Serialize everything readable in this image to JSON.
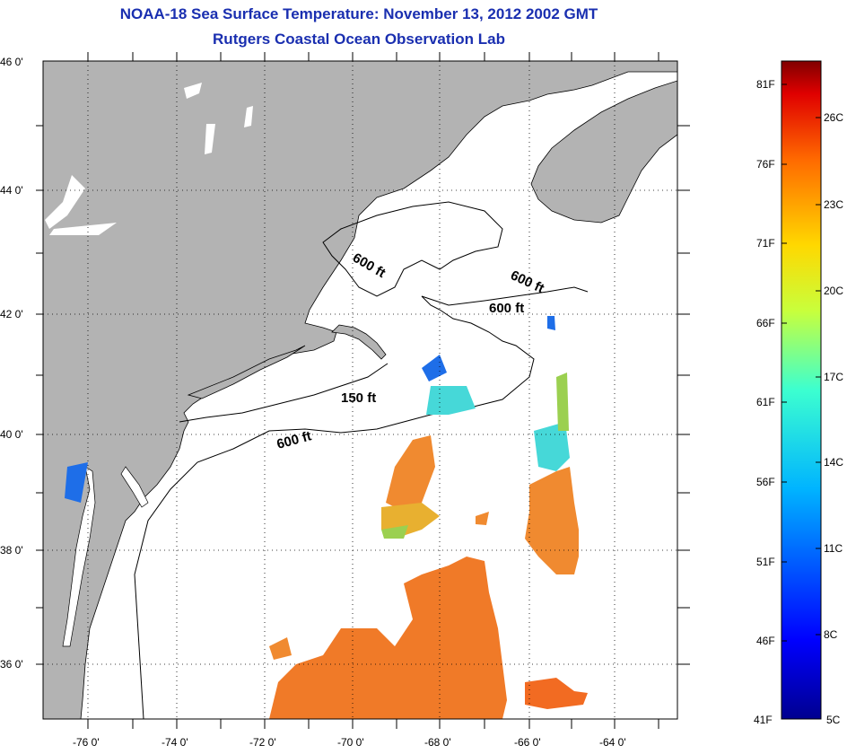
{
  "title": {
    "line1": "NOAA-18 Sea Surface Temperature:  November 13, 2012 2002 GMT",
    "line2": "Rutgers Coastal Ocean Observation Lab"
  },
  "map": {
    "lat_labels": [
      "46 0'",
      "44 0'",
      "42 0'",
      "40 0'",
      "38 0'",
      "36 0'"
    ],
    "lon_labels": [
      "-76 0'",
      "-74 0'",
      "-72 0'",
      "-70 0'",
      "-68 0'",
      "-66 0'",
      "-64 0'"
    ],
    "contours": [
      "600 ft",
      "600 ft",
      "600 ft",
      "150 ft",
      "600 ft"
    ],
    "colors": {
      "land": "#b3b3b3",
      "coastline": "#000000",
      "sst_warm": "#f07a28",
      "sst_mid": "#e8b030",
      "sst_cool": "#46d8d8"
    }
  },
  "colorbar": {
    "fahrenheit": [
      "81F",
      "76F",
      "71F",
      "66F",
      "61F",
      "56F",
      "51F",
      "46F",
      "41F"
    ],
    "celsius": [
      "26C",
      "23C",
      "20C",
      "17C",
      "14C",
      "11C",
      "8C",
      "5C"
    ],
    "range_f": [
      41,
      81
    ],
    "range_c": [
      5,
      27
    ]
  }
}
